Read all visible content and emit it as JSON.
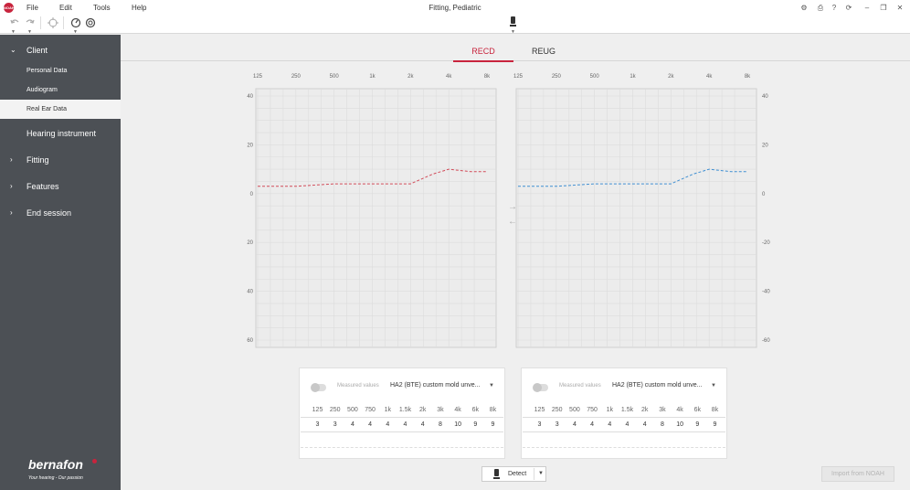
{
  "app": {
    "logo_text": "NOAH",
    "title": "Fitting, Pediatric",
    "menu": [
      "File",
      "Edit",
      "Tools",
      "Help"
    ]
  },
  "icons": {
    "undo": "undo-icon",
    "redo": "redo-icon",
    "locate": "crosshair-icon",
    "speed": "speed-icon",
    "feedback": "feedback-icon",
    "settings": "gear-icon",
    "print": "print-icon",
    "help": "question-icon",
    "sync": "sync-icon",
    "minimize": "minimize-icon",
    "restore": "restore-icon",
    "close": "close-icon"
  },
  "window_controls": {
    "settings": "⚙",
    "print": "⎙",
    "help": "?",
    "sync": "⟳",
    "minimize": "–",
    "restore": "❐",
    "close": "✕"
  },
  "sidebar": {
    "client": {
      "chevron": "⌄",
      "label": "Client"
    },
    "client_items": [
      "Personal Data",
      "Audiogram",
      "Real Ear Data"
    ],
    "sections": [
      {
        "chevron": "",
        "label": "Hearing instrument"
      },
      {
        "chevron": "›",
        "label": "Fitting"
      },
      {
        "chevron": "›",
        "label": "Features"
      },
      {
        "chevron": "›",
        "label": "End session"
      }
    ],
    "brand": "bernafon",
    "tagline": "Your hearing - Our passion"
  },
  "tabs": {
    "recd": "RECD",
    "reug": "REUG"
  },
  "colors": {
    "accent": "#c8243d",
    "right": "#d24b59",
    "left": "#3f8fd2",
    "sidebar": "#4c5055"
  },
  "chart_data": [
    {
      "type": "line",
      "name": "RECD right",
      "x": [
        "125",
        "250",
        "500",
        "1k",
        "2k",
        "4k",
        "8k"
      ],
      "xticks": [
        "125",
        "250",
        "500",
        "1k",
        "2k",
        "4k",
        "8k"
      ],
      "yticks": [
        40,
        20,
        0,
        -20,
        -40,
        -60
      ],
      "ylim": [
        -63,
        43
      ],
      "grid": true,
      "series": [
        {
          "x": [
            125,
            250,
            500,
            750,
            1000,
            1500,
            2000,
            3000,
            4000,
            6000,
            8000
          ],
          "values": [
            3,
            3,
            4,
            4,
            4,
            4,
            4,
            8,
            10,
            9,
            9
          ]
        }
      ]
    },
    {
      "type": "line",
      "name": "RECD left",
      "x": [
        "125",
        "250",
        "500",
        "1k",
        "2k",
        "4k",
        "8k"
      ],
      "xticks": [
        "125",
        "250",
        "500",
        "1k",
        "2k",
        "4k",
        "8k"
      ],
      "yticks": [
        40,
        20,
        0,
        -20,
        -40,
        -60
      ],
      "ylim": [
        -63,
        43
      ],
      "grid": true,
      "series": [
        {
          "x": [
            125,
            250,
            500,
            750,
            1000,
            1500,
            2000,
            3000,
            4000,
            6000,
            8000
          ],
          "values": [
            3,
            3,
            4,
            4,
            4,
            4,
            4,
            8,
            10,
            9,
            9
          ]
        }
      ]
    }
  ],
  "panels": [
    {
      "measured_label": "Measured values",
      "selection": "HA2 (BTE) custom mold unve...",
      "frequencies": [
        "125",
        "250",
        "500",
        "750",
        "1k",
        "1.5k",
        "2k",
        "3k",
        "4k",
        "6k",
        "8k"
      ],
      "values": [
        "3",
        "3",
        "4",
        "4",
        "4",
        "4",
        "4",
        "8",
        "10",
        "9",
        "9"
      ]
    },
    {
      "measured_label": "Measured values",
      "selection": "HA2 (BTE) custom mold unve...",
      "frequencies": [
        "125",
        "250",
        "500",
        "750",
        "1k",
        "1.5k",
        "2k",
        "3k",
        "4k",
        "6k",
        "8k"
      ],
      "values": [
        "3",
        "3",
        "4",
        "4",
        "4",
        "4",
        "4",
        "8",
        "10",
        "9",
        "9"
      ]
    }
  ],
  "transfer": {
    "to_right": "→",
    "to_left": "←"
  },
  "buttons": {
    "detect": "Detect",
    "import": "Import from NOAH"
  }
}
